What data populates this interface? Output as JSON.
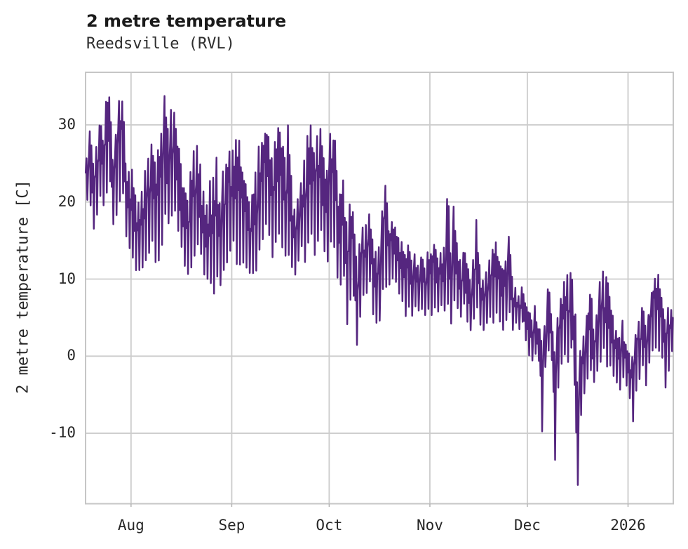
{
  "chart_data": {
    "type": "line",
    "title": "2 metre temperature",
    "subtitle": "Reedsville (RVL)",
    "xlabel": "",
    "ylabel": "2 metre temperature [C]",
    "legend": "none",
    "grid": "on",
    "background_color": "#ffffff",
    "grid_color": "#cccccc",
    "spine_color": "#c6c6c6",
    "series_color": "#55267f",
    "text_color": "#262626",
    "x_start_date": "2025-07-18",
    "x_end_date": "2026-01-14",
    "x_tick_labels": [
      "Aug",
      "Sep",
      "Oct",
      "Nov",
      "Dec",
      "2026"
    ],
    "x_tick_day_index": [
      14,
      45,
      75,
      106,
      136,
      167
    ],
    "y_ticks": [
      30,
      20,
      10,
      0,
      -10
    ],
    "y_range": [
      -19.2,
      36.8
    ],
    "x_range_days": [
      0,
      181
    ],
    "series_name": "2 metre temperature",
    "sampling_note": "daily [min,max] envelope in degrees C, read from plot",
    "daily_low_high": [
      [
        20,
        26
      ],
      [
        19,
        30
      ],
      [
        16,
        25
      ],
      [
        18,
        28
      ],
      [
        20,
        31
      ],
      [
        19,
        28
      ],
      [
        21,
        34
      ],
      [
        22,
        34
      ],
      [
        17,
        26
      ],
      [
        18,
        29
      ],
      [
        20,
        34
      ],
      [
        21,
        34
      ],
      [
        15,
        26
      ],
      [
        13,
        24
      ],
      [
        12,
        25
      ],
      [
        10,
        22
      ],
      [
        10.2,
        20
      ],
      [
        11,
        22
      ],
      [
        12,
        25
      ],
      [
        13,
        27
      ],
      [
        14,
        28
      ],
      [
        12,
        26
      ],
      [
        12,
        27
      ],
      [
        13,
        30
      ],
      [
        18,
        34.5
      ],
      [
        16,
        30
      ],
      [
        17,
        33
      ],
      [
        18,
        33
      ],
      [
        15,
        28
      ],
      [
        13,
        26
      ],
      [
        11,
        23
      ],
      [
        10,
        21
      ],
      [
        11,
        24
      ],
      [
        13,
        27
      ],
      [
        14,
        28
      ],
      [
        12,
        25
      ],
      [
        10,
        22
      ],
      [
        9,
        20
      ],
      [
        8,
        23
      ],
      [
        8,
        24
      ],
      [
        9,
        26
      ],
      [
        8,
        21
      ],
      [
        11,
        25
      ],
      [
        12,
        26
      ],
      [
        13,
        27
      ],
      [
        14,
        27
      ],
      [
        11,
        29.5
      ],
      [
        10.5,
        28
      ],
      [
        11,
        25
      ],
      [
        11,
        23
      ],
      [
        10,
        21
      ],
      [
        10,
        22
      ],
      [
        11,
        24
      ],
      [
        13,
        28
      ],
      [
        15,
        29
      ],
      [
        16,
        30.3
      ],
      [
        15,
        29
      ],
      [
        12,
        26
      ],
      [
        14,
        29
      ],
      [
        15,
        30
      ],
      [
        14,
        28
      ],
      [
        12,
        26
      ],
      [
        13,
        30.4
      ],
      [
        11,
        24
      ],
      [
        10,
        20
      ],
      [
        12,
        21
      ],
      [
        14,
        23
      ],
      [
        12,
        26
      ],
      [
        14,
        29
      ],
      [
        15,
        30
      ],
      [
        13,
        27
      ],
      [
        14,
        30
      ],
      [
        15,
        30.5
      ],
      [
        13,
        26
      ],
      [
        12,
        25
      ],
      [
        14,
        30
      ],
      [
        14,
        29
      ],
      [
        10,
        25
      ],
      [
        8,
        22
      ],
      [
        9,
        24
      ],
      [
        4,
        18
      ],
      [
        6,
        20
      ],
      [
        7,
        19
      ],
      [
        0.6,
        14
      ],
      [
        5,
        15
      ],
      [
        7,
        17
      ],
      [
        8,
        18
      ],
      [
        9,
        19
      ],
      [
        5,
        16
      ],
      [
        4,
        14
      ],
      [
        4,
        15
      ],
      [
        8,
        20
      ],
      [
        8,
        23.5
      ],
      [
        9,
        17
      ],
      [
        10,
        18
      ],
      [
        9,
        17
      ],
      [
        8,
        16
      ],
      [
        7,
        15
      ],
      [
        5,
        14
      ],
      [
        6,
        15
      ],
      [
        5,
        13
      ],
      [
        6,
        14
      ],
      [
        5.4,
        12
      ],
      [
        6,
        13
      ],
      [
        5,
        12
      ],
      [
        6,
        14
      ],
      [
        5,
        14
      ],
      [
        6,
        15
      ],
      [
        5,
        13
      ],
      [
        6,
        14
      ],
      [
        5,
        15
      ],
      [
        6,
        21
      ],
      [
        4,
        14
      ],
      [
        7,
        20
      ],
      [
        6,
        15
      ],
      [
        5,
        13
      ],
      [
        6,
        14
      ],
      [
        4,
        12
      ],
      [
        3,
        10
      ],
      [
        4,
        13
      ],
      [
        5,
        19
      ],
      [
        4,
        12
      ],
      [
        3,
        10
      ],
      [
        4,
        11
      ],
      [
        5,
        13
      ],
      [
        4,
        14
      ],
      [
        5,
        15.5
      ],
      [
        4,
        13
      ],
      [
        3,
        12
      ],
      [
        4,
        13
      ],
      [
        5,
        16.5
      ],
      [
        3,
        11
      ],
      [
        4,
        9
      ],
      [
        3,
        8
      ],
      [
        4,
        9
      ],
      [
        2,
        7
      ],
      [
        0,
        6
      ],
      [
        -1,
        5
      ],
      [
        0,
        7
      ],
      [
        -1,
        4
      ],
      [
        -10.8,
        3
      ],
      [
        -2,
        4
      ],
      [
        0,
        9.3
      ],
      [
        -1,
        6
      ],
      [
        -14.6,
        2
      ],
      [
        -5,
        5
      ],
      [
        -2,
        8
      ],
      [
        0,
        10
      ],
      [
        -1,
        11.3
      ],
      [
        0,
        11
      ],
      [
        -4,
        6
      ],
      [
        -16.8,
        -2
      ],
      [
        -8,
        1
      ],
      [
        -5,
        3
      ],
      [
        -3,
        6
      ],
      [
        -2,
        8.5
      ],
      [
        -4,
        4
      ],
      [
        -2,
        6
      ],
      [
        -1,
        9.7
      ],
      [
        0,
        11
      ],
      [
        -2,
        11
      ],
      [
        -2,
        8
      ],
      [
        -3,
        6
      ],
      [
        -4,
        4
      ],
      [
        -4.9,
        3
      ],
      [
        -3,
        5
      ],
      [
        -4,
        2
      ],
      [
        -6,
        1
      ],
      [
        -9,
        0
      ],
      [
        -5,
        3
      ],
      [
        -3,
        5
      ],
      [
        -2,
        7
      ],
      [
        -4,
        4
      ],
      [
        -1,
        6
      ],
      [
        0,
        9
      ],
      [
        1,
        10.5
      ],
      [
        0,
        11
      ],
      [
        -1,
        8
      ],
      [
        -4.8,
        5
      ],
      [
        -2,
        7
      ],
      [
        0,
        6.5
      ]
    ]
  }
}
